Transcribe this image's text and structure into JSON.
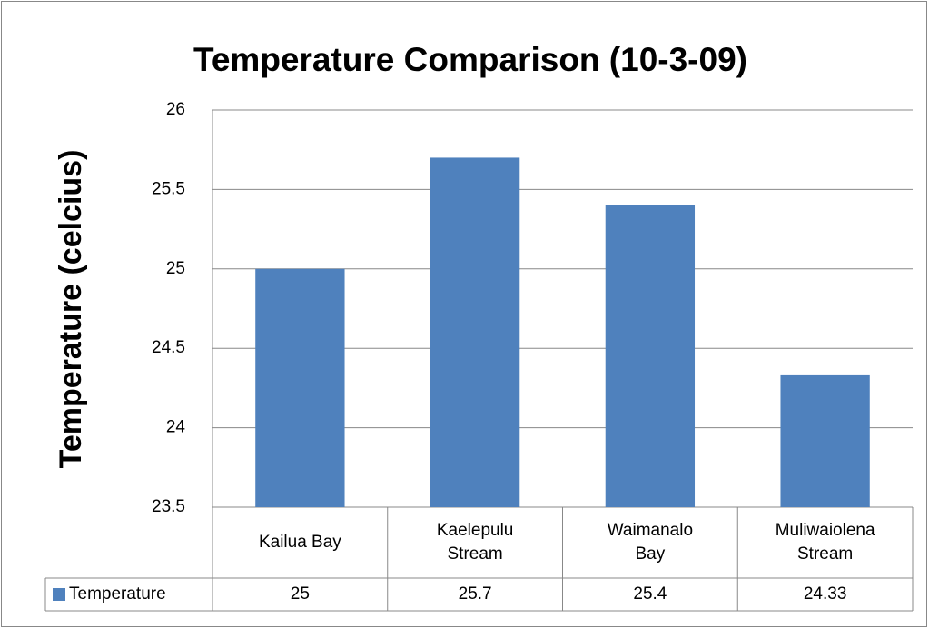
{
  "chart_data": {
    "type": "bar",
    "title": "Temperature Comparison (10-3-09)",
    "y_label": "Temperature (celcius)",
    "categories": [
      "Kailua Bay",
      "Kaelepulu Stream",
      "Waimanalo Bay",
      "Muliwaiolena Stream"
    ],
    "series": [
      {
        "name": "Temperature",
        "color": "#4f81bd",
        "values": [
          25,
          25.7,
          25.4,
          24.33
        ]
      }
    ],
    "ylim": [
      23.5,
      26
    ],
    "yticks": [
      23.5,
      24,
      24.5,
      25,
      25.5,
      26
    ],
    "grid": true,
    "data_table": true
  }
}
